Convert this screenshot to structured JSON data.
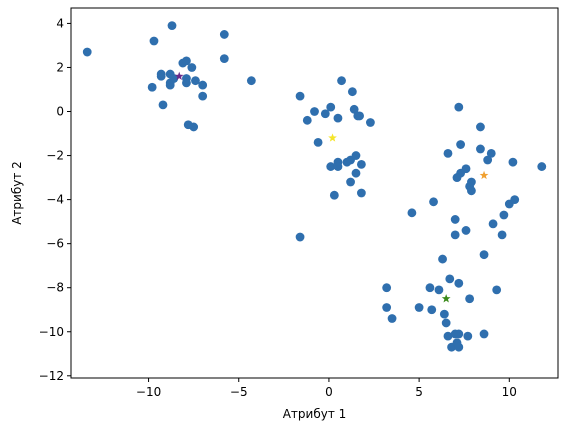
{
  "chart_data": {
    "type": "scatter",
    "xlabel": "Атрибут 1",
    "ylabel": "Атрибут 2",
    "xlim": [
      -14.3,
      12.7
    ],
    "ylim": [
      -12.1,
      4.7
    ],
    "xticks": [
      -10,
      -5,
      0,
      5,
      10
    ],
    "yticks": [
      -12,
      -10,
      -8,
      -6,
      -4,
      -2,
      0,
      2,
      4
    ],
    "tick_labels_x": [
      "−10",
      "−5",
      "0",
      "5",
      "10"
    ],
    "tick_labels_y": [
      "−12",
      "−10",
      "−8",
      "−6",
      "−4",
      "−2",
      "0",
      "2",
      "4"
    ],
    "grid": false,
    "series": [
      {
        "marker": "circle",
        "color": "#2f6fae",
        "points": [
          [
            -13.4,
            2.7
          ],
          [
            -8.7,
            3.9
          ],
          [
            -9.7,
            3.2
          ],
          [
            -5.8,
            3.5
          ],
          [
            -5.8,
            2.4
          ],
          [
            -4.3,
            1.4
          ],
          [
            -9.3,
            1.6
          ],
          [
            -9.3,
            1.7
          ],
          [
            -9.8,
            1.1
          ],
          [
            -8.8,
            1.7
          ],
          [
            -8.8,
            1.3
          ],
          [
            -8.6,
            1.5
          ],
          [
            -8.1,
            2.2
          ],
          [
            -7.9,
            2.3
          ],
          [
            -7.6,
            2.0
          ],
          [
            -7.9,
            1.5
          ],
          [
            -7.9,
            1.3
          ],
          [
            -7.4,
            1.4
          ],
          [
            -7.0,
            1.2
          ],
          [
            -7.0,
            0.7
          ],
          [
            -9.2,
            0.3
          ],
          [
            -7.8,
            -0.6
          ],
          [
            -7.5,
            -0.7
          ],
          [
            -8.8,
            1.2
          ],
          [
            -1.6,
            0.7
          ],
          [
            -1.2,
            -0.4
          ],
          [
            -0.8,
            0.0
          ],
          [
            -0.2,
            -0.1
          ],
          [
            0.1,
            0.2
          ],
          [
            0.5,
            -0.3
          ],
          [
            0.7,
            1.4
          ],
          [
            1.3,
            0.9
          ],
          [
            1.4,
            0.1
          ],
          [
            1.6,
            -0.2
          ],
          [
            1.7,
            -0.2
          ],
          [
            2.3,
            -0.5
          ],
          [
            -0.6,
            -1.4
          ],
          [
            0.1,
            -2.5
          ],
          [
            0.5,
            -2.3
          ],
          [
            0.5,
            -2.5
          ],
          [
            1.0,
            -2.3
          ],
          [
            1.2,
            -2.2
          ],
          [
            1.5,
            -2.0
          ],
          [
            1.8,
            -2.4
          ],
          [
            1.2,
            -3.2
          ],
          [
            1.5,
            -2.8
          ],
          [
            1.8,
            -3.7
          ],
          [
            0.3,
            -3.8
          ],
          [
            -1.6,
            -5.7
          ],
          [
            7.2,
            0.2
          ],
          [
            8.4,
            -0.7
          ],
          [
            7.3,
            -1.5
          ],
          [
            6.6,
            -1.9
          ],
          [
            8.4,
            -1.7
          ],
          [
            9.0,
            -1.9
          ],
          [
            8.8,
            -2.2
          ],
          [
            10.2,
            -2.3
          ],
          [
            11.8,
            -2.5
          ],
          [
            7.6,
            -2.6
          ],
          [
            7.3,
            -2.8
          ],
          [
            7.1,
            -3.0
          ],
          [
            7.9,
            -3.2
          ],
          [
            7.8,
            -3.4
          ],
          [
            7.9,
            -3.6
          ],
          [
            10.3,
            -4.0
          ],
          [
            10.0,
            -4.2
          ],
          [
            9.1,
            -5.1
          ],
          [
            9.7,
            -4.7
          ],
          [
            9.6,
            -5.6
          ],
          [
            4.6,
            -4.6
          ],
          [
            5.8,
            -4.1
          ],
          [
            7.0,
            -4.9
          ],
          [
            7.0,
            -5.6
          ],
          [
            7.6,
            -5.4
          ],
          [
            8.6,
            -6.5
          ],
          [
            6.3,
            -6.7
          ],
          [
            6.7,
            -7.6
          ],
          [
            7.2,
            -7.8
          ],
          [
            7.8,
            -8.5
          ],
          [
            9.3,
            -8.1
          ],
          [
            6.1,
            -8.1
          ],
          [
            5.6,
            -8.0
          ],
          [
            3.2,
            -8.0
          ],
          [
            3.2,
            -8.9
          ],
          [
            5.0,
            -8.9
          ],
          [
            5.7,
            -9.0
          ],
          [
            6.4,
            -9.2
          ],
          [
            6.5,
            -9.6
          ],
          [
            3.5,
            -9.4
          ],
          [
            6.6,
            -10.2
          ],
          [
            7.0,
            -10.1
          ],
          [
            7.2,
            -10.1
          ],
          [
            7.7,
            -10.2
          ],
          [
            8.6,
            -10.1
          ],
          [
            6.8,
            -10.7
          ],
          [
            7.1,
            -10.5
          ],
          [
            7.2,
            -10.7
          ]
        ]
      },
      {
        "marker": "star",
        "color": "#6a2a8a",
        "points": [
          [
            -8.3,
            1.6
          ]
        ]
      },
      {
        "marker": "star",
        "color": "#f5e52a",
        "points": [
          [
            0.2,
            -1.2
          ]
        ]
      },
      {
        "marker": "star",
        "color": "#f0a030",
        "points": [
          [
            8.6,
            -2.9
          ]
        ]
      },
      {
        "marker": "star",
        "color": "#3a8a1a",
        "points": [
          [
            6.5,
            -8.5
          ]
        ]
      }
    ]
  }
}
